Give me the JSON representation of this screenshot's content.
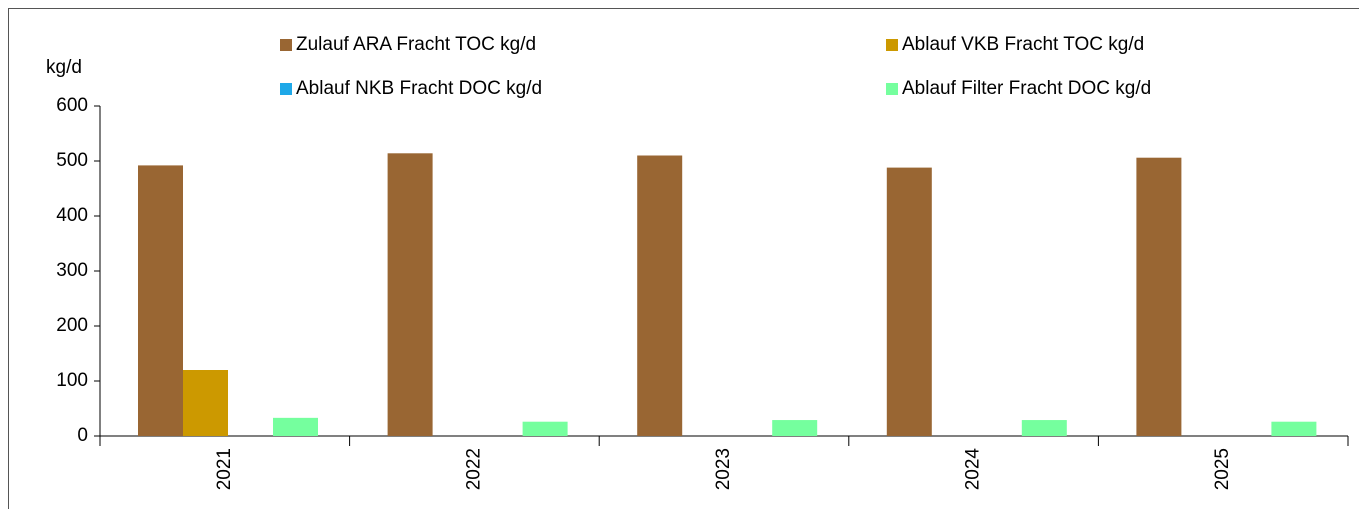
{
  "chart_data": {
    "type": "bar",
    "y_axis_label": "kg/d",
    "categories": [
      "2021",
      "2022",
      "2023",
      "2024",
      "2025"
    ],
    "series": [
      {
        "name": "Zulauf ARA Fracht TOC kg/d",
        "color": "#996633",
        "values": [
          492,
          514,
          510,
          488,
          506
        ]
      },
      {
        "name": "Ablauf VKB Fracht TOC kg/d",
        "color": "#cc9900",
        "values": [
          120,
          null,
          null,
          null,
          null
        ]
      },
      {
        "name": "Ablauf NKB Fracht DOC kg/d",
        "color": "#1ea8e8",
        "values": [
          null,
          null,
          null,
          null,
          null
        ]
      },
      {
        "name": "Ablauf Filter Fracht DOC kg/d",
        "color": "#75ff9e",
        "values": [
          33,
          26,
          29,
          29,
          26
        ]
      }
    ],
    "ylim": [
      0,
      600
    ],
    "yticks": [
      0,
      100,
      200,
      300,
      400,
      500,
      600
    ],
    "grid": false
  }
}
